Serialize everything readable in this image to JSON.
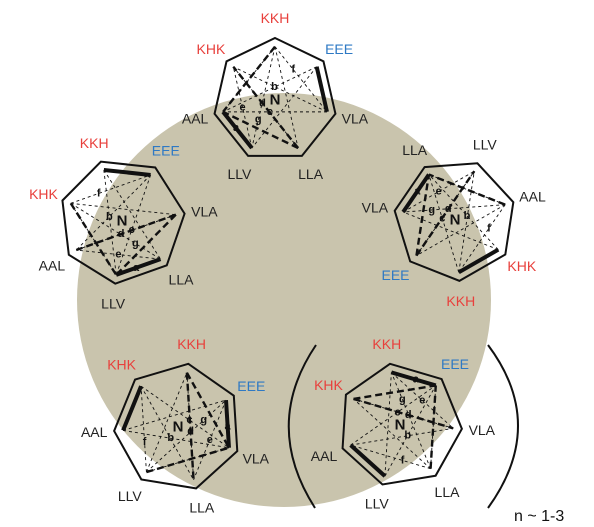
{
  "colors": {
    "disk": "#c9c4ad",
    "neutral_label": "#222222",
    "red_label": "#e8403c",
    "blue_label": "#2e79c4",
    "stroke": "#111111"
  },
  "center_label": "N",
  "edge_letters": [
    "a",
    "b",
    "c",
    "d",
    "e",
    "f",
    "g"
  ],
  "molecules": [
    {
      "labels": [
        "KKH",
        "EEE",
        "VLA",
        "LLA",
        "LLV",
        "AAL",
        "KHK"
      ]
    },
    {
      "labels": [
        "KHK",
        "KKH",
        "EEE",
        "VLA",
        "LLA",
        "LLV",
        "AAL"
      ]
    },
    {
      "labels": [
        "AAL",
        "KHK",
        "KKH",
        "EEE",
        "VLA",
        "LLA",
        "LLV"
      ]
    },
    {
      "labels": [
        "LLV",
        "AAL",
        "KHK",
        "KKH",
        "EEE",
        "VLA",
        "LLA"
      ]
    },
    {
      "labels": [
        "LLA",
        "LLV",
        "AAL",
        "KHK",
        "KKH",
        "EEE",
        "VLA"
      ]
    }
  ],
  "annotation": "n ~ 1-3"
}
